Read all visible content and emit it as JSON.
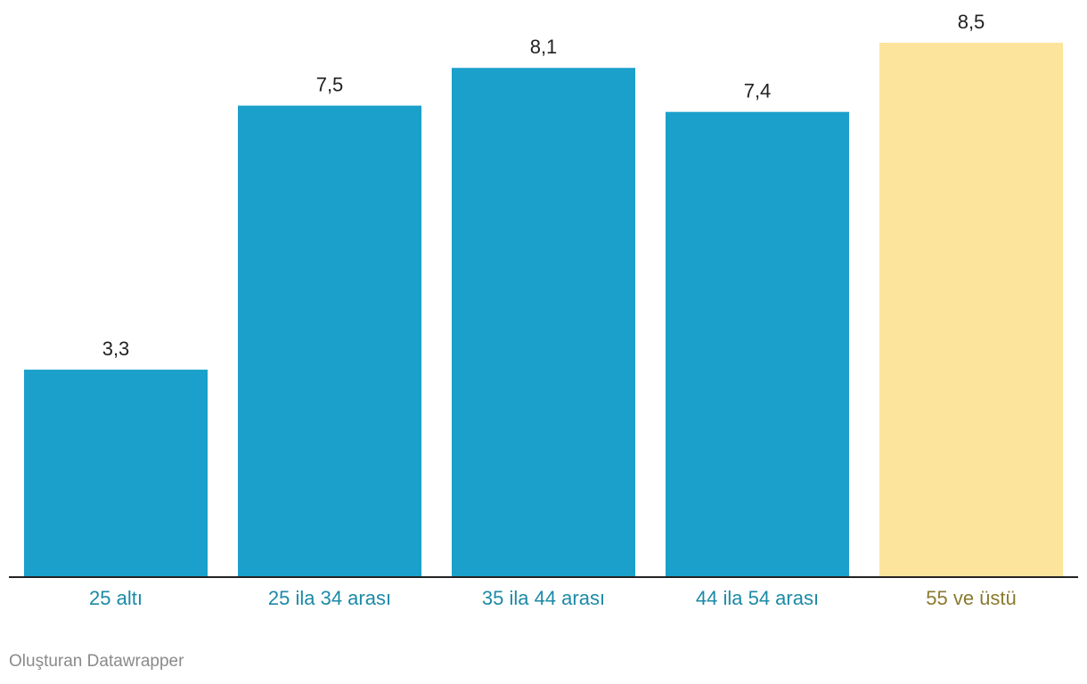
{
  "chart_data": {
    "type": "bar",
    "categories": [
      "25 altı",
      "25 ila 34 arası",
      "35 ila 44 arası",
      "44 ila 54 arası",
      "55 ve üstü"
    ],
    "values": [
      3.3,
      7.5,
      8.1,
      7.4,
      8.5
    ],
    "value_labels": [
      "3,3",
      "7,5",
      "8,1",
      "7,4",
      "8,5"
    ],
    "ylim": [
      0,
      8.5
    ],
    "grid": false,
    "colors": {
      "default_bar": "#1aa0cb",
      "highlight_bar": "#fde49c",
      "default_label": "#1b8aa6",
      "highlight_label": "#8a7a2e",
      "value_text": "#222222",
      "baseline": "#222222"
    },
    "highlight_index": 4
  },
  "footer": {
    "credit": "Oluşturan Datawrapper"
  }
}
